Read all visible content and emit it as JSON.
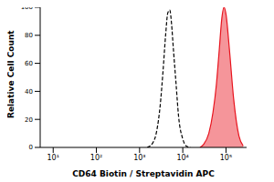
{
  "chart_data": {
    "type": "line",
    "x_label": "CD64 Biotin / Streptavidin APC",
    "y_label": "Relative Cell Count",
    "log": "x",
    "xlim": [
      5,
      300000
    ],
    "xticks": [
      {
        "value": 10,
        "label": "10¹"
      },
      {
        "value": 100,
        "label": "10²"
      },
      {
        "value": 1000,
        "label": "10³"
      },
      {
        "value": 10000,
        "label": "10⁴"
      },
      {
        "value": 100000,
        "label": "10⁵"
      }
    ],
    "ylim": [
      0,
      100
    ],
    "yticks": [
      0,
      20,
      40,
      60,
      80,
      100
    ],
    "x": [
      1500,
      2000,
      2500,
      3000,
      3500,
      4000,
      4500,
      5000,
      5500,
      6000,
      7000,
      8000,
      10000,
      12000,
      15000,
      20000,
      25000,
      30000,
      40000,
      50000,
      60000,
      70000,
      80000,
      90000,
      100000,
      120000,
      150000,
      200000,
      250000
    ],
    "series": [
      {
        "type": "line",
        "color": "#000000",
        "line_style": "dashed",
        "values": [
          0,
          3,
          12,
          30,
          55,
          80,
          96,
          98,
          88,
          72,
          45,
          22,
          6,
          1,
          0,
          null,
          null,
          null,
          null,
          null,
          null,
          null,
          null,
          null,
          null,
          null,
          null,
          null,
          null
        ]
      },
      {
        "type": "area",
        "color": "#e8141e",
        "values": [
          null,
          null,
          null,
          null,
          null,
          null,
          null,
          null,
          null,
          null,
          null,
          null,
          null,
          null,
          null,
          null,
          0,
          2,
          10,
          25,
          45,
          70,
          92,
          100,
          95,
          70,
          35,
          8,
          1
        ]
      }
    ]
  }
}
